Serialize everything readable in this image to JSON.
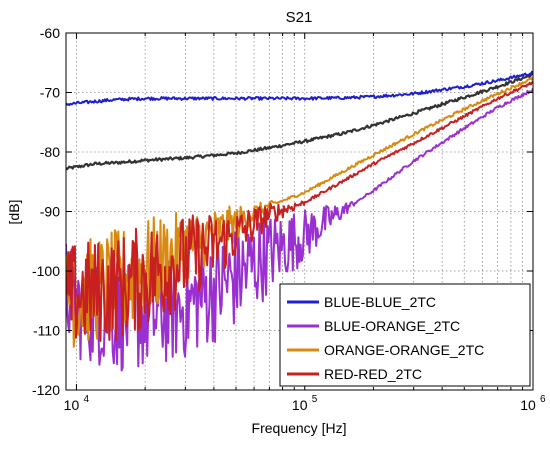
{
  "chart_data": {
    "type": "line",
    "title": "S21",
    "xlabel": "Frequency [Hz]",
    "ylabel": "[dB]",
    "x_scale": "log",
    "xlim": [
      9000,
      1000000
    ],
    "ylim": [
      -120,
      -60
    ],
    "grid": true,
    "legend_position": "bottom-right",
    "x_ticks": [
      {
        "value": 10000,
        "base": "10",
        "exp": "4"
      },
      {
        "value": 100000,
        "base": "10",
        "exp": "5"
      },
      {
        "value": 1000000,
        "base": "10",
        "exp": "6"
      }
    ],
    "y_ticks": [
      {
        "value": -60,
        "label": "-60"
      },
      {
        "value": -70,
        "label": "-70"
      },
      {
        "value": -80,
        "label": "-80"
      },
      {
        "value": -90,
        "label": "-90"
      },
      {
        "value": -100,
        "label": "-100"
      },
      {
        "value": -110,
        "label": "-110"
      },
      {
        "value": -120,
        "label": "-120"
      }
    ],
    "series": [
      {
        "name": "BLUE-BLUE_2TC",
        "color": "#1f1fd0",
        "x": [
          9000,
          12000,
          15000,
          20000,
          30000,
          50000,
          70000,
          100000,
          150000,
          200000,
          300000,
          500000,
          700000,
          1000000
        ],
        "y": [
          -72,
          -71.5,
          -71.2,
          -71,
          -71,
          -71,
          -71,
          -71,
          -70.9,
          -70.7,
          -70.2,
          -69,
          -68,
          -66.7
        ]
      },
      {
        "name": "BLUE-ORANGE_2TC",
        "color": "#9b30d0",
        "x": [
          9000,
          10000,
          15000,
          20000,
          30000,
          50000,
          70000,
          100000,
          200000,
          300000,
          500000,
          700000,
          1000000
        ],
        "y": [
          -103,
          -106,
          -108,
          -108,
          -106,
          -101,
          -97,
          -94,
          -86.5,
          -81.5,
          -76,
          -72.5,
          -69.5
        ]
      },
      {
        "name": "ORANGE-ORANGE_2TC",
        "color": "#d88a10",
        "x": [
          9000,
          10000,
          15000,
          20000,
          30000,
          50000,
          70000,
          100000,
          200000,
          300000,
          500000,
          700000,
          1000000
        ],
        "y": [
          -104,
          -104,
          -102,
          -100,
          -96,
          -92,
          -89,
          -86.8,
          -80.5,
          -77,
          -72.8,
          -70.2,
          -67.6
        ]
      },
      {
        "name": "RED-RED_2TC",
        "color": "#c82020",
        "x": [
          9000,
          10000,
          15000,
          20000,
          30000,
          50000,
          70000,
          100000,
          200000,
          300000,
          500000,
          700000,
          1000000
        ],
        "y": [
          -105,
          -104,
          -103,
          -101,
          -98,
          -94,
          -90.5,
          -88.5,
          -82,
          -78.5,
          -74,
          -71,
          -68.3
        ]
      },
      {
        "name": "",
        "color": "#333333",
        "x": [
          9000,
          12000,
          15000,
          20000,
          30000,
          50000,
          70000,
          100000,
          150000,
          200000,
          300000,
          500000,
          700000,
          1000000
        ],
        "y": [
          -82.8,
          -82,
          -81.8,
          -81.4,
          -81,
          -80.2,
          -79.3,
          -78.2,
          -76.8,
          -75.5,
          -73.5,
          -70.8,
          -69,
          -67
        ]
      }
    ]
  }
}
